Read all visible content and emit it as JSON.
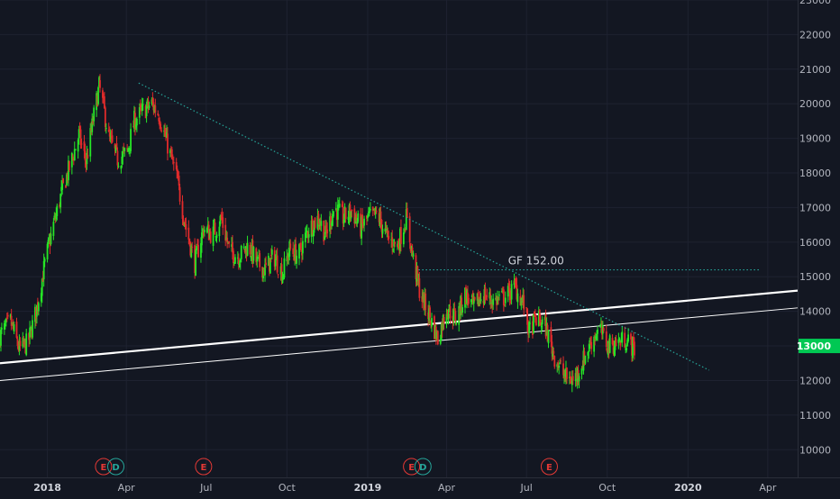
{
  "colors": {
    "background": "#131722",
    "grid": "#1e2230",
    "axis_text": "#b2b5be",
    "up": "#26e626",
    "down": "#e02b2b",
    "trendline": "#26a69a",
    "channel": "#ffffff",
    "price_label_bg": "#00c853",
    "event_earnings": "#e53935",
    "event_dividend": "#26a69a"
  },
  "price_label": "13000",
  "annotation_text": "GF 152.00",
  "chart_data": {
    "type": "candlestick",
    "title": "",
    "xlabel": "",
    "ylabel": "",
    "grid": true,
    "xlim": [
      "2017-11-08",
      "2020-05-05"
    ],
    "ylim": [
      9200,
      23000
    ],
    "y_ticks": [
      10000,
      11000,
      12000,
      13000,
      14000,
      15000,
      16000,
      17000,
      18000,
      19000,
      20000,
      21000,
      22000,
      23000
    ],
    "x_ticks": [
      {
        "label": "2018",
        "date": "2018-01-01",
        "major": true
      },
      {
        "label": "Apr",
        "date": "2018-04-01",
        "major": false
      },
      {
        "label": "Jul",
        "date": "2018-07-01",
        "major": false
      },
      {
        "label": "Oct",
        "date": "2018-10-01",
        "major": false
      },
      {
        "label": "2019",
        "date": "2019-01-01",
        "major": true
      },
      {
        "label": "Apr",
        "date": "2019-04-01",
        "major": false
      },
      {
        "label": "Jul",
        "date": "2019-07-01",
        "major": false
      },
      {
        "label": "Oct",
        "date": "2019-10-01",
        "major": false
      },
      {
        "label": "2020",
        "date": "2020-01-01",
        "major": true
      },
      {
        "label": "Apr",
        "date": "2020-04-01",
        "major": false
      }
    ],
    "series": [
      {
        "close_path": [
          [
            "2017-11-08",
            13300
          ],
          [
            "2017-11-20",
            13700
          ],
          [
            "2017-11-30",
            12900
          ],
          [
            "2017-12-10",
            13100
          ],
          [
            "2017-12-20",
            14100
          ],
          [
            "2017-12-30",
            15500
          ],
          [
            "2018-01-08",
            16500
          ],
          [
            "2018-01-18",
            17500
          ],
          [
            "2018-01-28",
            18300
          ],
          [
            "2018-02-06",
            19100
          ],
          [
            "2018-02-14",
            18300
          ],
          [
            "2018-02-24",
            19800
          ],
          [
            "2018-03-01",
            20500
          ],
          [
            "2018-03-06",
            19900
          ],
          [
            "2018-03-12",
            19000
          ],
          [
            "2018-03-22",
            18400
          ],
          [
            "2018-04-02",
            18600
          ],
          [
            "2018-04-10",
            19500
          ],
          [
            "2018-04-20",
            19800
          ],
          [
            "2018-04-30",
            20000
          ],
          [
            "2018-05-08",
            19700
          ],
          [
            "2018-05-18",
            18800
          ],
          [
            "2018-05-28",
            17900
          ],
          [
            "2018-06-08",
            16400
          ],
          [
            "2018-06-18",
            15400
          ],
          [
            "2018-06-28",
            16400
          ],
          [
            "2018-07-08",
            16200
          ],
          [
            "2018-07-18",
            16700
          ],
          [
            "2018-07-28",
            15700
          ],
          [
            "2018-08-08",
            15600
          ],
          [
            "2018-08-18",
            15900
          ],
          [
            "2018-08-28",
            15400
          ],
          [
            "2018-09-06",
            15200
          ],
          [
            "2018-09-16",
            15600
          ],
          [
            "2018-09-26",
            15100
          ],
          [
            "2018-10-04",
            15800
          ],
          [
            "2018-10-14",
            15600
          ],
          [
            "2018-10-26",
            16400
          ],
          [
            "2018-11-06",
            16700
          ],
          [
            "2018-11-14",
            16200
          ],
          [
            "2018-11-24",
            17000
          ],
          [
            "2018-12-04",
            16700
          ],
          [
            "2018-12-14",
            16900
          ],
          [
            "2018-12-24",
            16400
          ],
          [
            "2019-01-02",
            16700
          ],
          [
            "2019-01-12",
            16800
          ],
          [
            "2019-01-24",
            16100
          ],
          [
            "2019-02-04",
            15900
          ],
          [
            "2019-02-14",
            16700
          ],
          [
            "2019-02-22",
            15500
          ],
          [
            "2019-03-02",
            14500
          ],
          [
            "2019-03-12",
            13900
          ],
          [
            "2019-03-22",
            13200
          ],
          [
            "2019-04-01",
            14100
          ],
          [
            "2019-04-12",
            13800
          ],
          [
            "2019-04-22",
            14500
          ],
          [
            "2019-05-02",
            14100
          ],
          [
            "2019-05-12",
            14500
          ],
          [
            "2019-05-24",
            14300
          ],
          [
            "2019-06-06",
            14400
          ],
          [
            "2019-06-18",
            14700
          ],
          [
            "2019-06-28",
            14200
          ],
          [
            "2019-07-04",
            13400
          ],
          [
            "2019-07-12",
            13800
          ],
          [
            "2019-07-22",
            13600
          ],
          [
            "2019-08-02",
            12700
          ],
          [
            "2019-08-14",
            12100
          ],
          [
            "2019-08-24",
            12000
          ],
          [
            "2019-09-04",
            12600
          ],
          [
            "2019-09-14",
            13200
          ],
          [
            "2019-09-22",
            13500
          ],
          [
            "2019-10-02",
            13000
          ],
          [
            "2019-10-12",
            13100
          ],
          [
            "2019-10-22",
            13200
          ],
          [
            "2019-11-02",
            12900
          ]
        ],
        "seed": 7
      }
    ],
    "lines": [
      {
        "kind": "trendline",
        "style": "dotted",
        "from": [
          "2018-04-15",
          20600
        ],
        "to": [
          "2020-01-25",
          12300
        ]
      },
      {
        "kind": "horizontal",
        "style": "dotted",
        "from": [
          "2019-02-28",
          15200
        ],
        "to": [
          "2020-03-22",
          15200
        ],
        "label": "GF 152.00"
      },
      {
        "kind": "channel-upper",
        "style": "solid",
        "width": 2.2,
        "from": [
          "2017-11-08",
          12500
        ],
        "to": [
          "2020-05-05",
          14600
        ]
      },
      {
        "kind": "channel-lower",
        "style": "solid",
        "width": 1,
        "from": [
          "2017-11-08",
          12000
        ],
        "to": [
          "2020-05-05",
          14100
        ]
      }
    ],
    "events": [
      {
        "type": "E",
        "date": "2018-03-06"
      },
      {
        "type": "D",
        "date": "2018-03-20"
      },
      {
        "type": "E",
        "date": "2018-06-28"
      },
      {
        "type": "E",
        "date": "2019-02-20"
      },
      {
        "type": "D",
        "date": "2019-03-05"
      },
      {
        "type": "E",
        "date": "2019-07-27"
      }
    ]
  }
}
